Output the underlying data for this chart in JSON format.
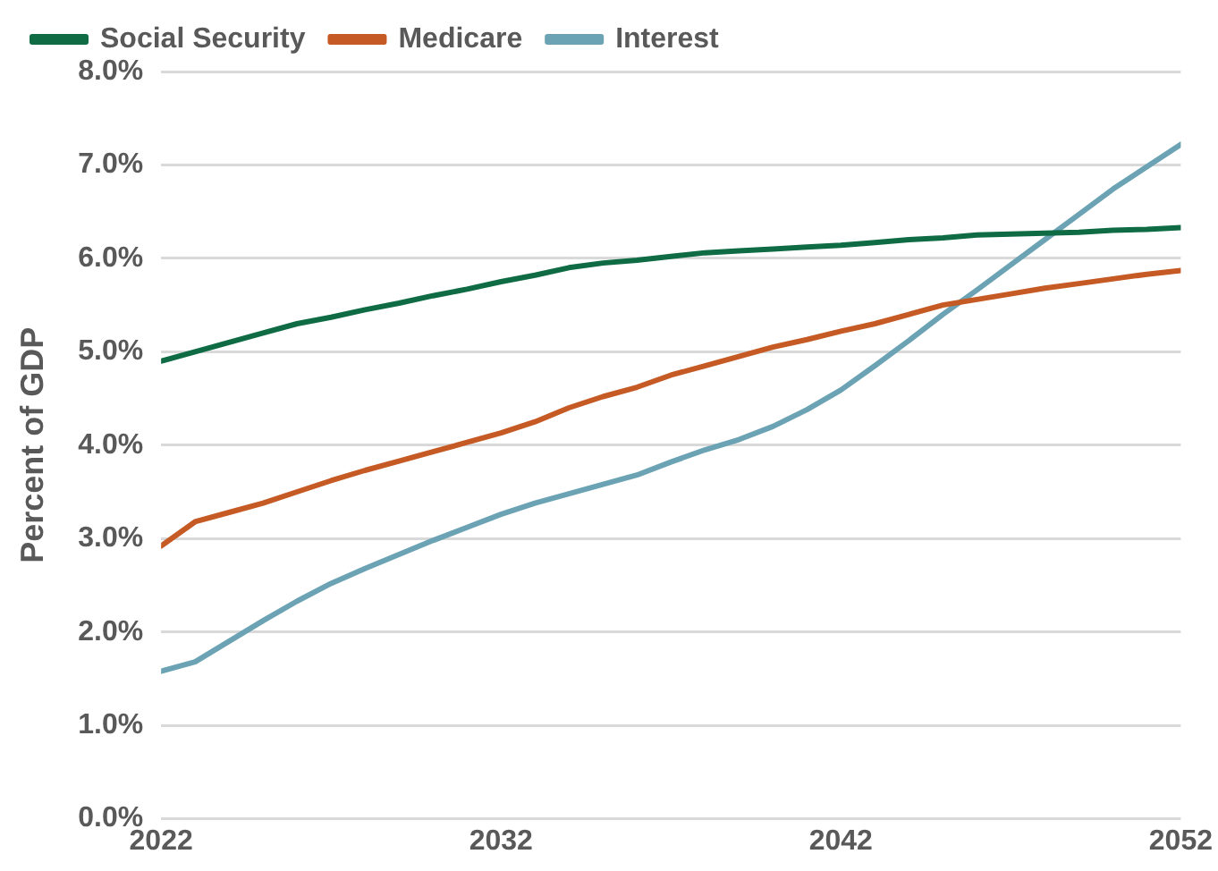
{
  "chart_data": {
    "type": "line",
    "ylabel": "Percent of GDP",
    "x": [
      2022,
      2023,
      2024,
      2025,
      2026,
      2027,
      2028,
      2029,
      2030,
      2031,
      2032,
      2033,
      2034,
      2035,
      2036,
      2037,
      2038,
      2039,
      2040,
      2041,
      2042,
      2043,
      2044,
      2045,
      2046,
      2047,
      2048,
      2049,
      2050,
      2051,
      2052
    ],
    "series": [
      {
        "name": "Social Security",
        "color": "#0f6b44",
        "values": [
          4.9,
          5.0,
          5.1,
          5.2,
          5.3,
          5.37,
          5.45,
          5.52,
          5.6,
          5.67,
          5.75,
          5.82,
          5.9,
          5.95,
          5.98,
          6.02,
          6.06,
          6.08,
          6.1,
          6.12,
          6.14,
          6.17,
          6.2,
          6.22,
          6.25,
          6.26,
          6.27,
          6.28,
          6.3,
          6.31,
          6.33
        ]
      },
      {
        "name": "Medicare",
        "color": "#c55a24",
        "values": [
          2.92,
          3.18,
          3.28,
          3.38,
          3.5,
          3.62,
          3.73,
          3.83,
          3.93,
          4.03,
          4.13,
          4.25,
          4.4,
          4.52,
          4.62,
          4.75,
          4.85,
          4.95,
          5.05,
          5.13,
          5.22,
          5.3,
          5.4,
          5.5,
          5.56,
          5.62,
          5.68,
          5.73,
          5.78,
          5.83,
          5.87
        ]
      },
      {
        "name": "Interest",
        "color": "#6ba3b5",
        "values": [
          1.58,
          1.68,
          1.9,
          2.12,
          2.33,
          2.52,
          2.68,
          2.83,
          2.98,
          3.12,
          3.26,
          3.38,
          3.48,
          3.58,
          3.68,
          3.82,
          3.95,
          4.06,
          4.2,
          4.38,
          4.59,
          4.85,
          5.12,
          5.4,
          5.66,
          5.93,
          6.2,
          6.47,
          6.74,
          6.98,
          7.22
        ]
      }
    ],
    "xlim": [
      2022,
      2052
    ],
    "xticks": [
      2022,
      2032,
      2042,
      2052
    ],
    "ylim": [
      0,
      8
    ],
    "yticks": [
      {
        "value": 0,
        "label": "0.0%"
      },
      {
        "value": 1,
        "label": "1.0%"
      },
      {
        "value": 2,
        "label": "2.0%"
      },
      {
        "value": 3,
        "label": "3.0%"
      },
      {
        "value": 4,
        "label": "4.0%"
      },
      {
        "value": 5,
        "label": "5.0%"
      },
      {
        "value": 6,
        "label": "6.0%"
      },
      {
        "value": 7,
        "label": "7.0%"
      },
      {
        "value": 8,
        "label": "8.0%"
      }
    ],
    "grid": "y",
    "legend": "top",
    "marker": "none",
    "line_style": "solid"
  }
}
